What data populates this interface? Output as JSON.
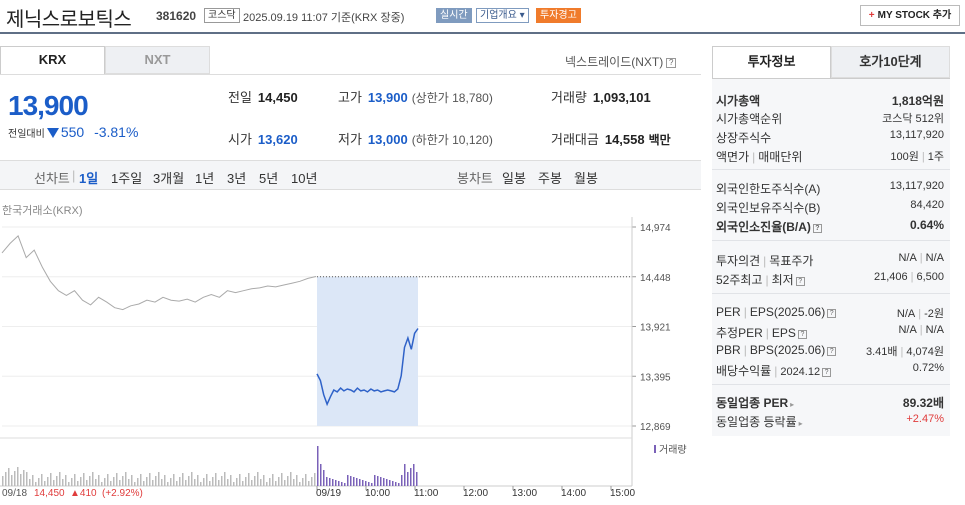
{
  "header": {
    "title": "제닉스로보틱스",
    "code": "381620",
    "market_badge": "코스닥",
    "as_of": "2025.09.19 11:07 기준(KRX 장중)",
    "realtime_badge": "실시간",
    "company_badge": "기업개요 ▾",
    "warning_badge": "투자경고",
    "mystock_label": "MY STOCK 추가"
  },
  "market_tabs": {
    "krx": "KRX",
    "nxt": "NXT",
    "nxt_trade": "넥스트레이드(NXT)"
  },
  "quote": {
    "price": "13,900",
    "change_label": "전일대비",
    "change": "550",
    "change_pct": "-3.81%",
    "prev_close_label": "전일",
    "prev_close": "14,450",
    "high_label": "고가",
    "high": "13,900",
    "upper_limit": "(상한가 18,780)",
    "volume_label": "거래량",
    "volume": "1,093,101",
    "open_label": "시가",
    "open": "13,620",
    "low_label": "저가",
    "low": "13,000",
    "lower_limit": "(하한가 10,120)",
    "amount_label": "거래대금",
    "amount": "14,558",
    "amount_unit": "백만"
  },
  "chart_controls": {
    "line_label": "선차트",
    "periods": [
      "1일",
      "1주일",
      "3개월",
      "1년",
      "3년",
      "5년",
      "10년"
    ],
    "selected_period": "1일",
    "candle_label": "봉차트",
    "candle_periods": [
      "일봉",
      "주봉",
      "월봉"
    ]
  },
  "chart_data": {
    "type": "line",
    "exchange_label": "한국거래소(KRX)",
    "y_ticks": [
      "14,974",
      "14,448",
      "13,921",
      "13,395",
      "12,869"
    ],
    "ylim": [
      12869,
      14974
    ],
    "x_ticks": [
      "09/19",
      "10:00",
      "11:00",
      "12:00",
      "13:00",
      "14:00",
      "15:00"
    ],
    "prev_day": [
      [
        0,
        14700
      ],
      [
        1,
        14800
      ],
      [
        2,
        14880
      ],
      [
        3,
        14650
      ],
      [
        4,
        14730
      ],
      [
        5,
        14550
      ],
      [
        6,
        14400
      ],
      [
        7,
        14300
      ],
      [
        8,
        14250
      ],
      [
        9,
        14300
      ],
      [
        10,
        14200
      ],
      [
        11,
        14150
      ],
      [
        12,
        14230
      ],
      [
        13,
        14180
      ],
      [
        14,
        14120
      ],
      [
        15,
        14100
      ],
      [
        16,
        14140
      ],
      [
        17,
        14160
      ],
      [
        18,
        14200
      ],
      [
        19,
        14180
      ],
      [
        20,
        14230
      ],
      [
        21,
        14200
      ],
      [
        22,
        14190
      ],
      [
        23,
        14210
      ],
      [
        24,
        14180
      ],
      [
        25,
        14230
      ],
      [
        26,
        14260
      ],
      [
        27,
        14230
      ],
      [
        28,
        14300
      ],
      [
        29,
        14280
      ],
      [
        30,
        14300
      ],
      [
        31,
        14320
      ],
      [
        32,
        14330
      ],
      [
        33,
        14350
      ],
      [
        34,
        14340
      ],
      [
        35,
        14360
      ],
      [
        36,
        14380
      ],
      [
        37,
        14400
      ],
      [
        38,
        14430
      ],
      [
        39,
        14450
      ]
    ],
    "today": [
      [
        0,
        13420
      ],
      [
        1,
        13350
      ],
      [
        2,
        13200
      ],
      [
        3,
        13100
      ],
      [
        4,
        13180
      ],
      [
        5,
        13250
      ],
      [
        6,
        13230
      ],
      [
        7,
        13270
      ],
      [
        8,
        13240
      ],
      [
        9,
        13260
      ],
      [
        10,
        13250
      ],
      [
        11,
        13230
      ],
      [
        12,
        13270
      ],
      [
        13,
        13240
      ],
      [
        14,
        13250
      ],
      [
        15,
        13230
      ],
      [
        16,
        13260
      ],
      [
        17,
        13240
      ],
      [
        18,
        13250
      ],
      [
        19,
        13230
      ],
      [
        20,
        13240
      ],
      [
        21,
        13250
      ],
      [
        22,
        13240
      ],
      [
        23,
        13230
      ],
      [
        24,
        13260
      ],
      [
        25,
        13400
      ],
      [
        26,
        13700
      ],
      [
        27,
        13800
      ],
      [
        28,
        13680
      ],
      [
        29,
        13850
      ],
      [
        30,
        13900
      ]
    ],
    "prev_close": 14448,
    "volume_label": "거래량",
    "footer_date": "09/18",
    "footer_price": "14,450",
    "footer_change": "▲410",
    "footer_pct": "(+2.92%)"
  },
  "invest_tabs": {
    "info": "투자정보",
    "orderbook": "호가10단계"
  },
  "invest_info": {
    "market_cap": {
      "label": "시가총액",
      "value": "1,818억원"
    },
    "market_cap_rank": {
      "label": "시가총액순위",
      "value": "코스닥 512위"
    },
    "shares": {
      "label": "상장주식수",
      "value": "13,117,920"
    },
    "par": {
      "label": "액면가",
      "label2": "매매단위",
      "value": "100원",
      "value2": "1주"
    },
    "foreign_limit": {
      "label": "외국인한도주식수(A)",
      "value": "13,117,920"
    },
    "foreign_hold": {
      "label": "외국인보유주식수(B)",
      "value": "84,420"
    },
    "foreign_ratio": {
      "label": "외국인소진율(B/A)",
      "value": "0.64%"
    },
    "opinion": {
      "label": "투자의견",
      "label2": "목표주가",
      "value": "N/A",
      "value2": "N/A"
    },
    "week52": {
      "label": "52주최고",
      "label2": "최저",
      "value": "21,406",
      "value2": "6,500"
    },
    "per": {
      "label": "PER",
      "label2": "EPS(2025.06)",
      "value": "N/A",
      "value2": "-2원"
    },
    "est_per": {
      "label": "추정PER",
      "label2": "EPS",
      "value": "N/A",
      "value2": "N/A"
    },
    "pbr": {
      "label": "PBR",
      "label2": "BPS(2025.06)",
      "value": "3.41배",
      "value2": "4,074원"
    },
    "dividend": {
      "label": "배당수익률",
      "label2": "2024.12",
      "value": "0.72%"
    },
    "sector_per": {
      "label": "동일업종 PER",
      "value": "89.32배"
    },
    "sector_rate": {
      "label": "동일업종 등락률",
      "value": "+2.47%"
    }
  }
}
